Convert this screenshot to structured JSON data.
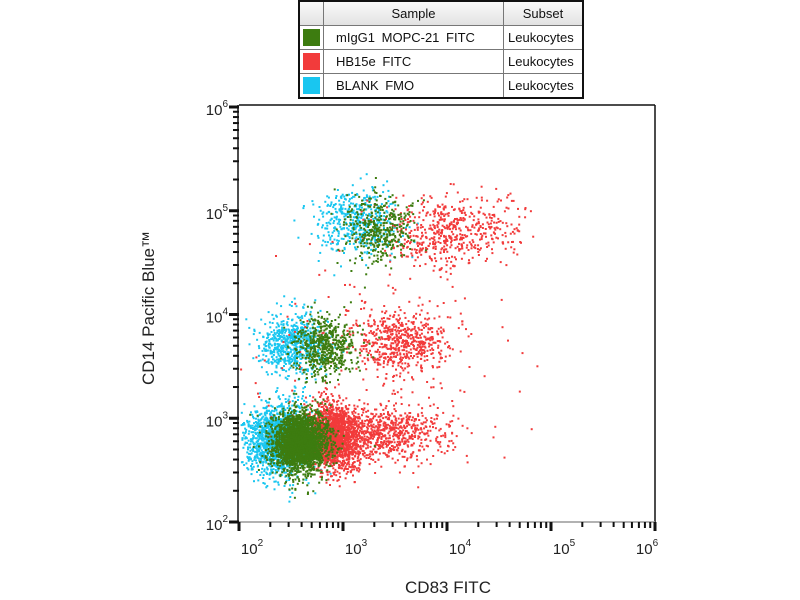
{
  "legend": {
    "headers": {
      "swatch": "",
      "sample": "Sample",
      "subset": "Subset"
    },
    "rows": [
      {
        "sample": "mIgG1  MOPC-21  FITC",
        "subset": "Leukocytes",
        "color": "#3d7c10"
      },
      {
        "sample": "HB15e  FITC",
        "subset": "Leukocytes",
        "color": "#f23b3b"
      },
      {
        "sample": "BLANK FMO",
        "subset": "Leukocytes",
        "color": "#19c6f0"
      }
    ]
  },
  "chart_data": {
    "type": "scatter",
    "title": "",
    "xlabel": "CD83 FITC",
    "ylabel": "CD14 Pacific Blue™",
    "xscale": "log",
    "yscale": "log",
    "xlim": [
      100,
      1000000
    ],
    "ylim": [
      100,
      1000000
    ],
    "tick_base": "10",
    "x_tick_exponents": [
      "2",
      "3",
      "4",
      "5",
      "6"
    ],
    "y_tick_exponents": [
      "2",
      "3",
      "4",
      "5",
      "6"
    ],
    "grid": false,
    "legend_placement": "top",
    "draw_order": [
      "BLANK FMO",
      "HB15e  FITC",
      "mIgG1  MOPC-21  FITC"
    ],
    "series": [
      {
        "name": "BLANK FMO",
        "color": "#19c6f0",
        "populations": [
          {
            "log10_center": [
              2.38,
              2.8
            ],
            "log10_sd": [
              0.17,
              0.17
            ],
            "count": 1700
          },
          {
            "log10_center": [
              2.5,
              3.72
            ],
            "log10_sd": [
              0.16,
              0.15
            ],
            "count": 650
          },
          {
            "log10_center": [
              3.12,
              4.9
            ],
            "log10_sd": [
              0.2,
              0.15
            ],
            "count": 450
          }
        ]
      },
      {
        "name": "HB15e  FITC",
        "color": "#f23b3b",
        "populations": [
          {
            "log10_center": [
              2.9,
              2.82
            ],
            "log10_sd": [
              0.13,
              0.15
            ],
            "count": 1900
          },
          {
            "log10_center": [
              3.45,
              2.86
            ],
            "log10_sd": [
              0.28,
              0.13
            ],
            "count": 650
          },
          {
            "log10_center": [
              3.56,
              3.74
            ],
            "log10_sd": [
              0.22,
              0.15
            ],
            "count": 550
          },
          {
            "log10_center": [
              4.05,
              4.82
            ],
            "log10_sd": [
              0.32,
              0.17
            ],
            "count": 550
          },
          {
            "log10_center": [
              3.3,
              3.5
            ],
            "log10_sd": [
              0.6,
              0.55
            ],
            "count": 200
          }
        ]
      },
      {
        "name": "mIgG1  MOPC-21  FITC",
        "color": "#3d7c10",
        "populations": [
          {
            "log10_center": [
              2.58,
              2.78
            ],
            "log10_sd": [
              0.13,
              0.14
            ],
            "count": 2600
          },
          {
            "log10_center": [
              2.82,
              3.7
            ],
            "log10_sd": [
              0.15,
              0.15
            ],
            "count": 550
          },
          {
            "log10_center": [
              3.32,
              4.84
            ],
            "log10_sd": [
              0.17,
              0.16
            ],
            "count": 400
          }
        ]
      }
    ]
  }
}
